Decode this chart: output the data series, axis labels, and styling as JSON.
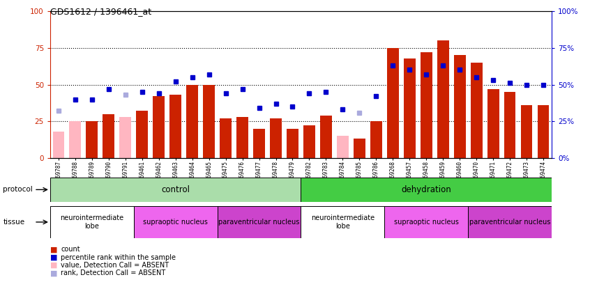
{
  "title": "GDS1612 / 1396461_at",
  "samples": [
    "GSM69787",
    "GSM69788",
    "GSM69789",
    "GSM69790",
    "GSM69791",
    "GSM69461",
    "GSM69462",
    "GSM69463",
    "GSM69464",
    "GSM69465",
    "GSM69475",
    "GSM69476",
    "GSM69477",
    "GSM69478",
    "GSM69479",
    "GSM69782",
    "GSM69783",
    "GSM69784",
    "GSM69785",
    "GSM69786",
    "GSM69268",
    "GSM69457",
    "GSM69458",
    "GSM69459",
    "GSM69460",
    "GSM69470",
    "GSM69471",
    "GSM69472",
    "GSM69473",
    "GSM69474"
  ],
  "bar_values": [
    18,
    25,
    25,
    30,
    28,
    32,
    42,
    43,
    50,
    50,
    27,
    28,
    20,
    27,
    20,
    22,
    29,
    15,
    13,
    25,
    75,
    68,
    72,
    80,
    70,
    65,
    47,
    45,
    36,
    36
  ],
  "bar_absent": [
    true,
    true,
    false,
    false,
    true,
    false,
    false,
    false,
    false,
    false,
    false,
    false,
    false,
    false,
    false,
    false,
    false,
    true,
    false,
    false,
    false,
    false,
    false,
    false,
    false,
    false,
    false,
    false,
    false,
    false
  ],
  "rank_values": [
    32,
    40,
    40,
    47,
    43,
    45,
    44,
    52,
    55,
    57,
    44,
    47,
    34,
    37,
    35,
    44,
    45,
    33,
    31,
    42,
    63,
    60,
    57,
    63,
    60,
    55,
    53,
    51,
    50,
    50
  ],
  "rank_absent": [
    true,
    false,
    false,
    false,
    true,
    false,
    false,
    false,
    false,
    false,
    false,
    false,
    false,
    false,
    false,
    false,
    false,
    false,
    true,
    false,
    false,
    false,
    false,
    false,
    false,
    false,
    false,
    false,
    false,
    false
  ],
  "protocol_groups": [
    {
      "label": "control",
      "start": 0,
      "end": 15,
      "color": "#aaddaa"
    },
    {
      "label": "dehydration",
      "start": 15,
      "end": 30,
      "color": "#44cc44"
    }
  ],
  "tissue_groups": [
    {
      "label": "neurointermediate\nlobe",
      "start": 0,
      "end": 5,
      "color": "#ffffff"
    },
    {
      "label": "supraoptic nucleus",
      "start": 5,
      "end": 10,
      "color": "#ee66ee"
    },
    {
      "label": "paraventricular nucleus",
      "start": 10,
      "end": 15,
      "color": "#cc44cc"
    },
    {
      "label": "neurointermediate\nlobe",
      "start": 15,
      "end": 20,
      "color": "#ffffff"
    },
    {
      "label": "supraoptic nucleus",
      "start": 20,
      "end": 25,
      "color": "#ee66ee"
    },
    {
      "label": "paraventricular nucleus",
      "start": 25,
      "end": 30,
      "color": "#cc44cc"
    }
  ],
  "bar_color_present": "#cc2200",
  "bar_color_absent": "#ffb6c1",
  "rank_color_present": "#0000cc",
  "rank_color_absent": "#aaaadd",
  "ylim": [
    0,
    100
  ],
  "yticks": [
    0,
    25,
    50,
    75,
    100
  ],
  "background_color": "#ffffff"
}
